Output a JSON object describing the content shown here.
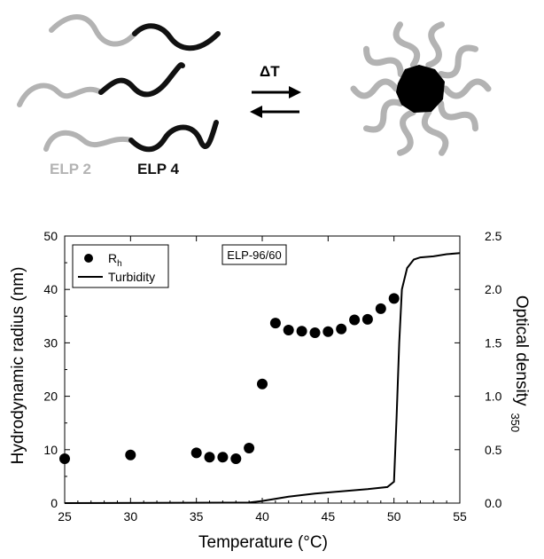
{
  "schematic": {
    "label_left": "ELP 2",
    "label_right": "ELP 4",
    "arrow_label": "ΔT",
    "colors": {
      "elp2": "#b3b3b3",
      "elp4": "#111111",
      "core": "#000000"
    }
  },
  "chart_data": {
    "type": "scatter",
    "xlabel": "Temperature (°C)",
    "ylabel": "Hydrodynamic radius (nm)",
    "y2label": "Optical density",
    "y2label_sub": "350",
    "xlim": [
      25,
      55
    ],
    "ylim": [
      0,
      50
    ],
    "y2lim": [
      0,
      2.5
    ],
    "x_ticks": [
      25,
      30,
      35,
      40,
      45,
      50,
      55
    ],
    "y_ticks": [
      0,
      10,
      20,
      30,
      40,
      50
    ],
    "y2_ticks": [
      "0.0",
      "0.5",
      "1.0",
      "1.5",
      "2.0",
      "2.5"
    ],
    "annotation": "ELP-96/60",
    "legend": {
      "placement": "top-left",
      "items": [
        {
          "label": "R",
          "sub": "h",
          "marker": "circle"
        },
        {
          "label": "Turbidity",
          "marker": "line"
        }
      ]
    },
    "series": [
      {
        "name": "Rh",
        "axis": "left",
        "style": "markers",
        "points": [
          [
            25,
            8.3
          ],
          [
            30,
            9.0
          ],
          [
            35,
            9.4
          ],
          [
            36,
            8.6
          ],
          [
            37,
            8.6
          ],
          [
            38,
            8.3
          ],
          [
            39,
            10.3
          ],
          [
            40,
            22.3
          ],
          [
            41,
            33.7
          ],
          [
            42,
            32.4
          ],
          [
            43,
            32.2
          ],
          [
            44,
            31.9
          ],
          [
            45,
            32.1
          ],
          [
            46,
            32.6
          ],
          [
            47,
            34.3
          ],
          [
            48,
            34.4
          ],
          [
            49,
            36.4
          ],
          [
            50,
            38.3
          ]
        ]
      },
      {
        "name": "Turbidity",
        "axis": "right",
        "style": "line",
        "points": [
          [
            25,
            0.0
          ],
          [
            39,
            0.005
          ],
          [
            40,
            0.02
          ],
          [
            42,
            0.06
          ],
          [
            44,
            0.09
          ],
          [
            46,
            0.11
          ],
          [
            48,
            0.13
          ],
          [
            49.5,
            0.15
          ],
          [
            50.0,
            0.2
          ],
          [
            50.2,
            0.8
          ],
          [
            50.4,
            1.5
          ],
          [
            50.6,
            2.0
          ],
          [
            51,
            2.2
          ],
          [
            51.5,
            2.28
          ],
          [
            52,
            2.3
          ],
          [
            53,
            2.31
          ],
          [
            54,
            2.33
          ],
          [
            55,
            2.34
          ]
        ]
      }
    ]
  }
}
